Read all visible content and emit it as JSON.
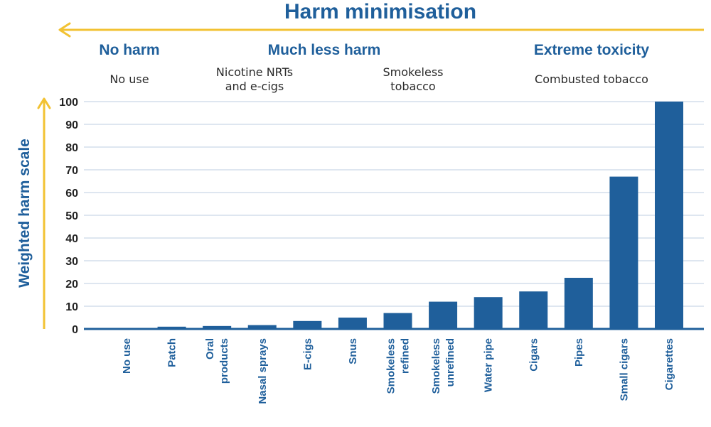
{
  "chart_data": {
    "type": "bar",
    "title": "Harm minimisation",
    "ylabel": "Weighted harm scale",
    "xlabel": "",
    "ylim": [
      0,
      100
    ],
    "yticks": [
      0,
      10,
      20,
      30,
      40,
      50,
      60,
      70,
      80,
      90,
      100
    ],
    "grid": true,
    "categories": [
      "No use",
      "Patch",
      "Oral products",
      "Nasal sprays",
      "E-cigs",
      "Snus",
      "Smokeless refined",
      "Smokeless unrefined",
      "Water pipe",
      "Cigars",
      "Pipes",
      "Small cigars",
      "Cigarettes"
    ],
    "values": [
      0,
      1,
      1.3,
      1.7,
      3.5,
      5,
      7,
      12,
      14,
      16.5,
      22.5,
      67,
      100
    ],
    "groups": {
      "headings": [
        "No harm",
        "Much less harm",
        "Extreme toxicity"
      ],
      "subheadings": [
        "No use",
        "Nicotine NRTs and e-cigs",
        "Smokeless tobacco",
        "Combusted tobacco"
      ]
    },
    "colors": {
      "bar": "#1f5f9b",
      "accent": "#f2c233",
      "grid": "#c9d8e6",
      "text": "#2a2a2a"
    }
  }
}
